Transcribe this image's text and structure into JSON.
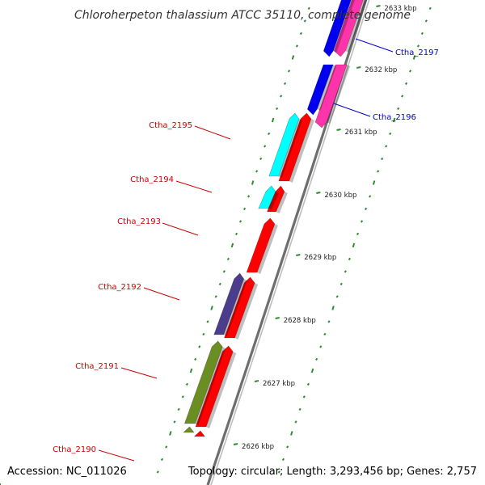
{
  "title": "Chloroherpeton thalassium ATCC 35110, complete genome",
  "footer": {
    "accession": "Accession: NC_011026",
    "summary": "Topology: circular; Length: 3,293,456 bp; Genes: 2,757"
  },
  "colors": {
    "backbone": "#808080",
    "tick": "#2e8b2e",
    "red_gene": "#ff0000",
    "blue_gene": "#0000ee",
    "pink_gene": "#ff33aa",
    "cyan_gene": "#00ffff",
    "purple_gene": "#4b3c8c",
    "olive_gene": "#6b8e23",
    "red_label": "#cc0000",
    "blue_label": "#0000cc"
  },
  "scale_ticks": [
    {
      "label": "2626 kbp"
    },
    {
      "label": "2627 kbp"
    },
    {
      "label": "2628 kbp"
    },
    {
      "label": "2629 kbp"
    },
    {
      "label": "2630 kbp"
    },
    {
      "label": "2631 kbp"
    },
    {
      "label": "2632 kbp"
    },
    {
      "label": "2633 kbp"
    }
  ],
  "gene_labels": [
    {
      "name": "Ctha_2197",
      "color": "blue"
    },
    {
      "name": "Ctha_2196",
      "color": "blue"
    },
    {
      "name": "Ctha_2195",
      "color": "red"
    },
    {
      "name": "Ctha_2194",
      "color": "red"
    },
    {
      "name": "Ctha_2193",
      "color": "red"
    },
    {
      "name": "Ctha_2192",
      "color": "red"
    },
    {
      "name": "Ctha_2191",
      "color": "red"
    },
    {
      "name": "Ctha_2190",
      "color": "red"
    }
  ]
}
